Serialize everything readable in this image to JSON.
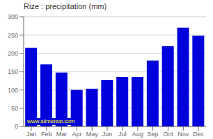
{
  "chart_data": {
    "type": "bar",
    "title": "Rize : precipitation (mm)",
    "categories": [
      "Jan",
      "Feb",
      "Mar",
      "Apr",
      "May",
      "Jun",
      "Jul",
      "Aug",
      "Sep",
      "Oct",
      "Nov",
      "Dec"
    ],
    "values": [
      215,
      170,
      147,
      100,
      103,
      127,
      135,
      135,
      180,
      220,
      270,
      248
    ],
    "color": "#0000DD",
    "ylim": [
      0,
      300
    ],
    "yticks": [
      0,
      50,
      100,
      150,
      200,
      250,
      300
    ],
    "grid": true,
    "annotations": [
      "www.allmetsat.com"
    ]
  }
}
